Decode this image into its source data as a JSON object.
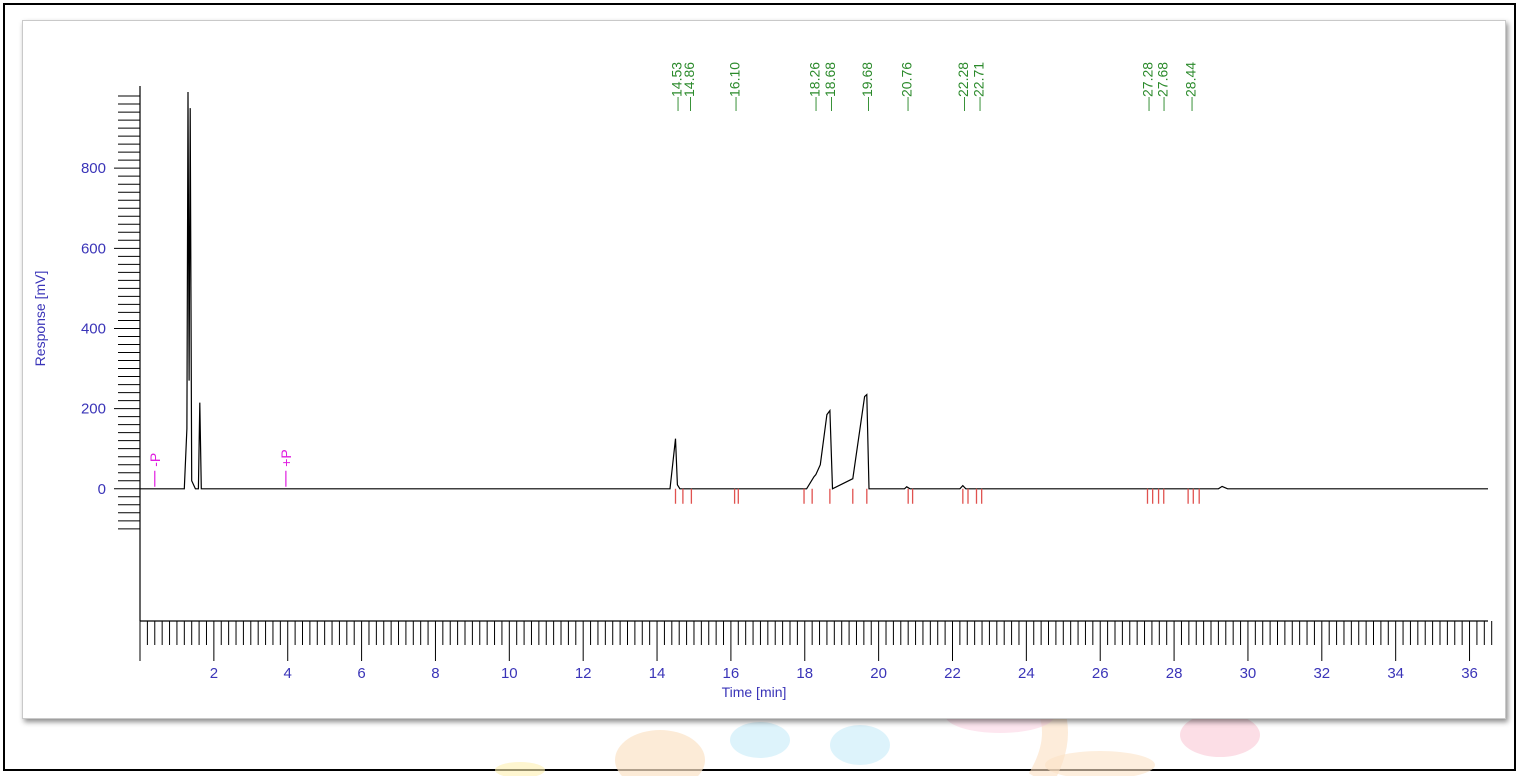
{
  "chart_data": {
    "type": "line",
    "title": "",
    "xlabel": "Time [min]",
    "ylabel": "Response [mV]",
    "xlim": [
      0,
      36.5
    ],
    "ylim": [
      -330,
      1030
    ],
    "x_ticks": [
      2,
      4,
      6,
      8,
      10,
      12,
      14,
      16,
      18,
      20,
      22,
      24,
      26,
      28,
      30,
      32,
      34,
      36
    ],
    "y_ticks": [
      0,
      200,
      400,
      600,
      800
    ],
    "series": [
      {
        "x": [
          0,
          1.2,
          1.27,
          1.3,
          1.33,
          1.36,
          1.4,
          1.5,
          1.58,
          1.62,
          1.66,
          1.75,
          14.35,
          14.5,
          14.55,
          14.62,
          18.05,
          18.25,
          18.3,
          18.42,
          18.6,
          18.68,
          18.75,
          19.3,
          19.62,
          19.68,
          19.74,
          20.7,
          20.76,
          20.85,
          22.2,
          22.28,
          22.36,
          29.2,
          29.3,
          29.45,
          36.5
        ],
        "y": [
          0,
          0,
          150,
          990,
          270,
          950,
          20,
          0,
          0,
          215,
          0,
          0,
          0,
          125,
          10,
          0,
          0,
          30,
          35,
          60,
          185,
          195,
          0,
          25,
          230,
          235,
          0,
          0,
          5,
          0,
          0,
          8,
          0,
          0,
          6,
          0,
          0
        ]
      }
    ],
    "peak_labels": [
      "14.53",
      "14.86",
      "16.10",
      "18.26",
      "18.68",
      "19.68",
      "20.76",
      "22.28",
      "22.71",
      "27.28",
      "27.68",
      "28.44"
    ],
    "peak_times": [
      14.53,
      14.86,
      16.1,
      18.26,
      18.68,
      19.68,
      20.76,
      22.28,
      22.71,
      27.28,
      27.68,
      28.44
    ],
    "integration_marks": [
      14.5,
      14.7,
      14.93,
      16.1,
      16.2,
      17.98,
      18.2,
      18.68,
      19.3,
      19.68,
      20.8,
      20.92,
      22.28,
      22.42,
      22.65,
      22.79,
      27.28,
      27.42,
      27.58,
      27.72,
      28.38,
      28.52,
      28.68
    ],
    "event_markers": [
      {
        "time": 0.4,
        "label": "-P"
      },
      {
        "time": 3.95,
        "label": "+P"
      }
    ],
    "colors": {
      "trace": "#000000",
      "axis_labels": "#3a34b8",
      "peak_labels": "#2b8a2b",
      "integration_marks": "#e0524f",
      "event_markers": "#e01ee0"
    },
    "grid": false
  }
}
